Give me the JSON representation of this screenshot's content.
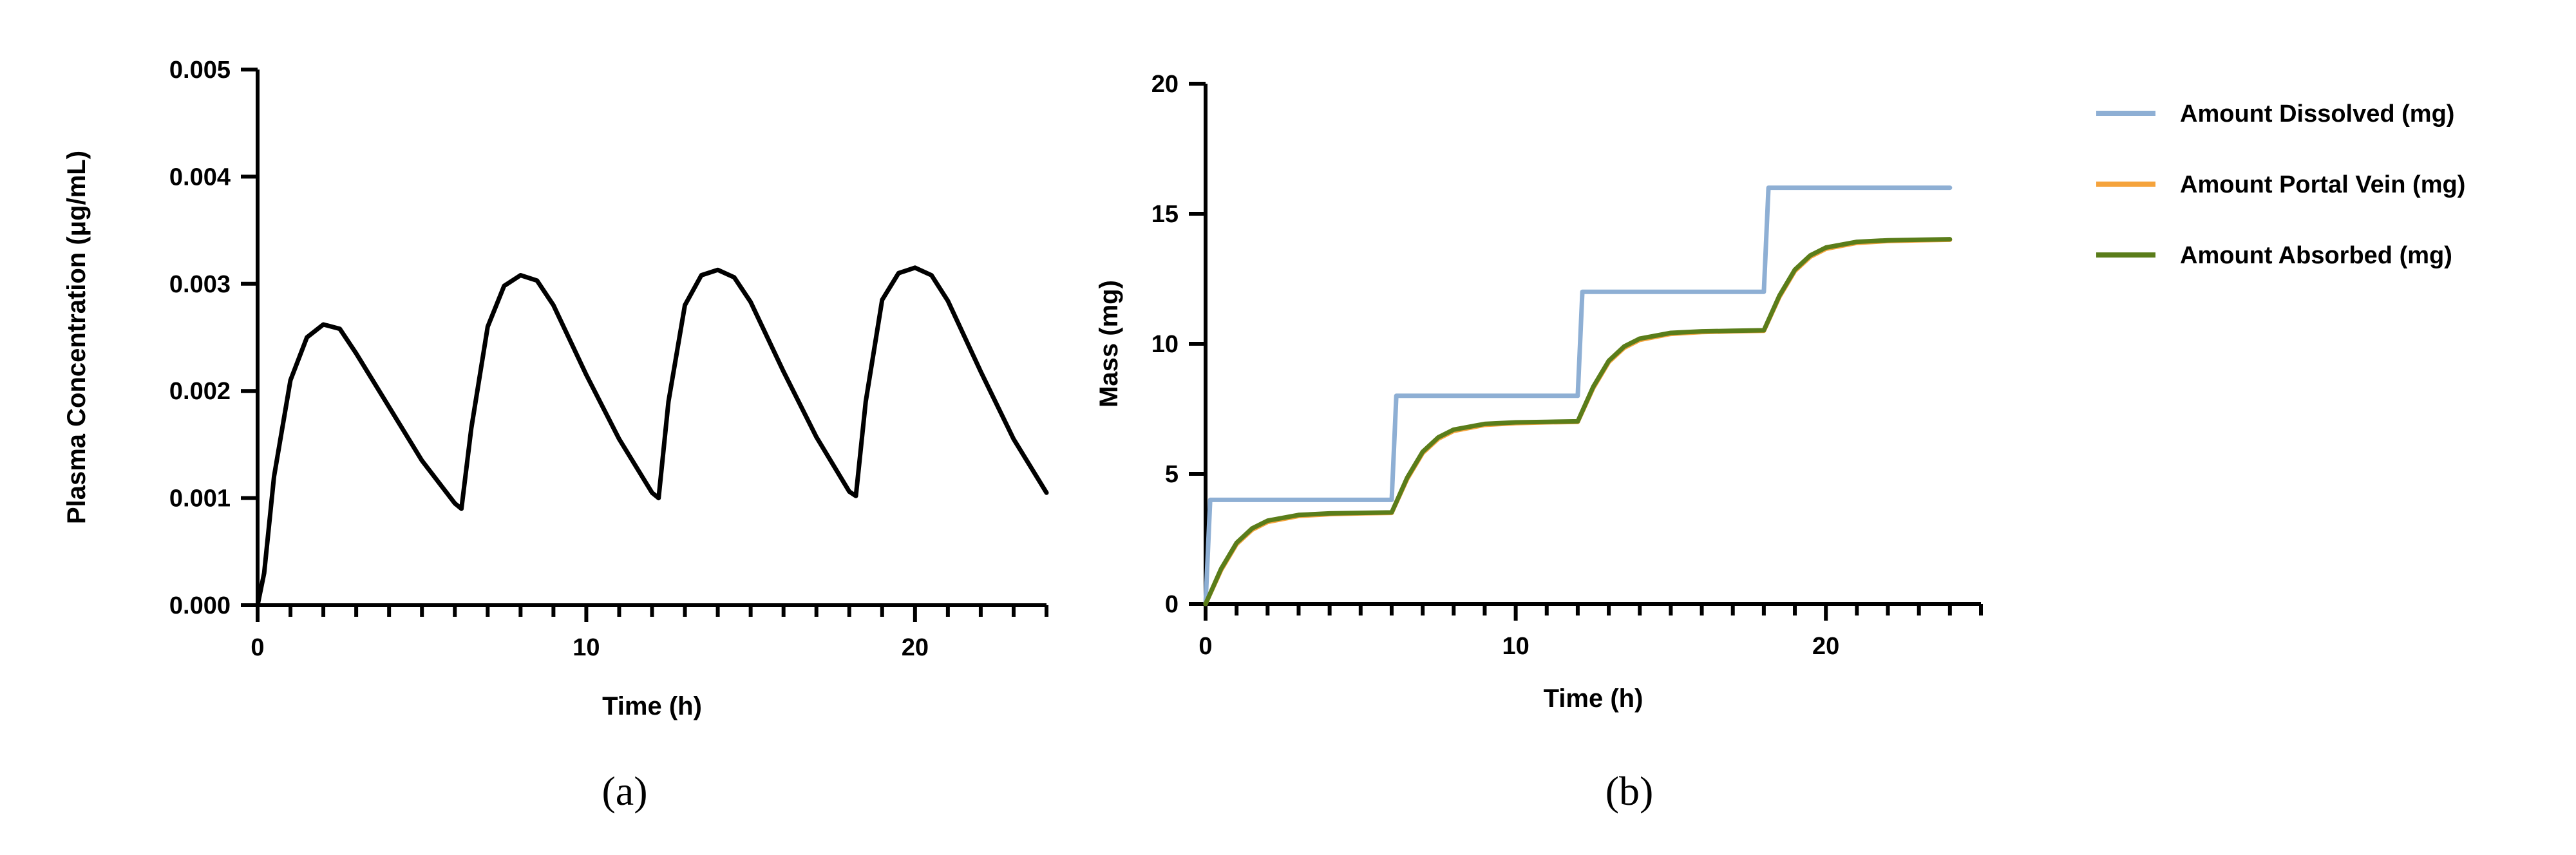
{
  "chart_data": [
    {
      "type": "line",
      "panel_label": "(a)",
      "title": "",
      "xlabel": "Time (h)",
      "ylabel": "Plasma Concentration (μg/mL)",
      "xlim": [
        0,
        24
      ],
      "ylim": [
        0,
        0.005
      ],
      "grid": false,
      "x_ticks": [
        0,
        10,
        20
      ],
      "x_tick_labels": [
        "0",
        "10",
        "20"
      ],
      "y_ticks": [
        0,
        0.001,
        0.002,
        0.003,
        0.004,
        0.005
      ],
      "y_tick_labels": [
        "0.000",
        "0.001",
        "0.002",
        "0.003",
        "0.004",
        "0.005"
      ],
      "series": [
        {
          "name": "Plasma Concentration",
          "color": "#000000",
          "x": [
            0,
            0.2,
            0.5,
            1,
            1.5,
            2,
            2.5,
            3,
            4,
            5,
            6,
            6.2,
            6.5,
            7,
            7.5,
            8,
            8.5,
            9,
            10,
            11,
            12,
            12.2,
            12.5,
            13,
            13.5,
            14,
            14.5,
            15,
            16,
            17,
            18,
            18.2,
            18.5,
            19,
            19.5,
            20,
            20.5,
            21,
            22,
            23,
            24
          ],
          "y": [
            0,
            0.0003,
            0.0012,
            0.0021,
            0.0025,
            0.00262,
            0.00258,
            0.00235,
            0.00185,
            0.00135,
            0.00095,
            0.0009,
            0.00165,
            0.0026,
            0.00298,
            0.00308,
            0.00303,
            0.0028,
            0.00215,
            0.00155,
            0.00105,
            0.001,
            0.0019,
            0.0028,
            0.00308,
            0.00313,
            0.00306,
            0.00283,
            0.00218,
            0.00157,
            0.00106,
            0.00102,
            0.0019,
            0.00285,
            0.0031,
            0.00315,
            0.00308,
            0.00284,
            0.00218,
            0.00155,
            0.00105
          ]
        }
      ]
    },
    {
      "type": "line",
      "panel_label": "(b)",
      "title": "",
      "xlabel": "Time (h)",
      "ylabel": "Mass (mg)",
      "xlim": [
        0,
        25
      ],
      "ylim": [
        0,
        20
      ],
      "grid": false,
      "legend_position": "right",
      "x_ticks": [
        0,
        10,
        20
      ],
      "x_tick_labels": [
        "0",
        "10",
        "20"
      ],
      "y_ticks": [
        0,
        5,
        10,
        15,
        20
      ],
      "y_tick_labels": [
        "0",
        "5",
        "10",
        "15",
        "20"
      ],
      "series": [
        {
          "name": "Amount Dissolved (mg)",
          "color": "#8eafd4",
          "x": [
            0,
            0.15,
            6,
            6.15,
            12,
            12.15,
            18,
            18.15,
            24
          ],
          "y": [
            0,
            4,
            4,
            8,
            8,
            12,
            12,
            16,
            16
          ]
        },
        {
          "name": "Amount Portal Vein (mg)",
          "color": "#f5a33c",
          "x": [
            0,
            0.5,
            1,
            1.5,
            2,
            3,
            4,
            5,
            6,
            6.5,
            7,
            7.5,
            8,
            9,
            10,
            11,
            12,
            12.5,
            13,
            13.5,
            14,
            15,
            16,
            17,
            18,
            18.5,
            19,
            19.5,
            20,
            21,
            22,
            23,
            24
          ],
          "y": [
            0,
            1.3,
            2.3,
            2.85,
            3.15,
            3.38,
            3.45,
            3.48,
            3.5,
            4.8,
            5.8,
            6.35,
            6.65,
            6.88,
            6.95,
            6.98,
            7.0,
            8.3,
            9.3,
            9.85,
            10.15,
            10.38,
            10.45,
            10.48,
            10.5,
            11.8,
            12.8,
            13.35,
            13.65,
            13.88,
            13.95,
            13.98,
            14.0
          ]
        },
        {
          "name": "Amount Absorbed (mg)",
          "color": "#5a7d1a",
          "x": [
            0,
            0.5,
            1,
            1.5,
            2,
            3,
            4,
            5,
            6,
            6.5,
            7,
            7.5,
            8,
            9,
            10,
            11,
            12,
            12.5,
            13,
            13.5,
            14,
            15,
            16,
            17,
            18,
            18.5,
            19,
            19.5,
            20,
            21,
            22,
            23,
            24
          ],
          "y": [
            0,
            1.35,
            2.35,
            2.9,
            3.2,
            3.42,
            3.48,
            3.5,
            3.52,
            4.85,
            5.85,
            6.4,
            6.7,
            6.92,
            6.98,
            7.0,
            7.02,
            8.35,
            9.35,
            9.9,
            10.2,
            10.42,
            10.48,
            10.5,
            10.52,
            11.85,
            12.85,
            13.4,
            13.7,
            13.92,
            13.98,
            14.0,
            14.02
          ]
        }
      ]
    }
  ]
}
